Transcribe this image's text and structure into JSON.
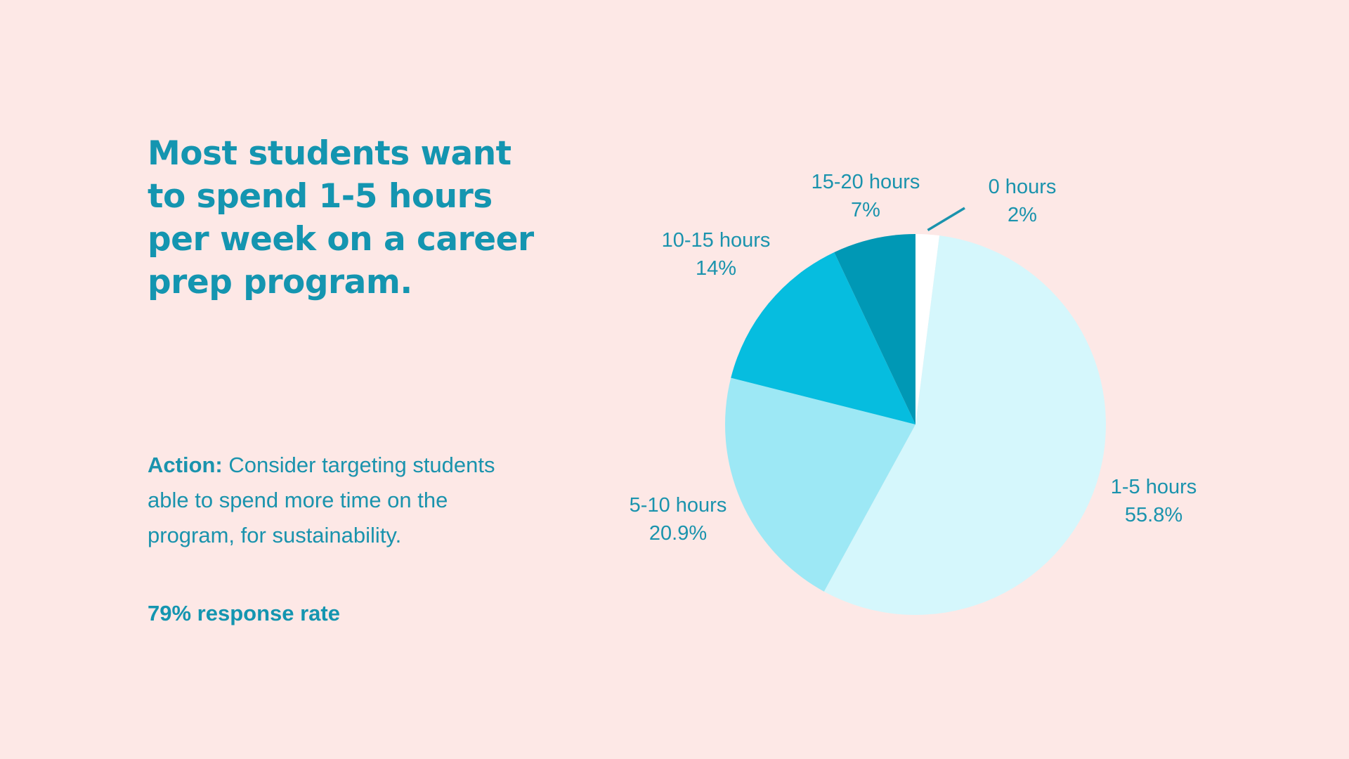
{
  "headline": "Most students want to spend 1-5 hours per week on a career prep program.",
  "action": {
    "lead": "Action:",
    "text": "Consider targeting students able to spend more time on the program, for sustainability."
  },
  "response_rate": "79% response rate",
  "chart_data": {
    "type": "pie",
    "title": "",
    "categories": [
      "0 hours",
      "1-5 hours",
      "5-10 hours",
      "10-15 hours",
      "15-20 hours"
    ],
    "values": [
      2,
      55.8,
      20.9,
      14,
      7
    ],
    "value_labels": [
      "2%",
      "55.8%",
      "20.9%",
      "14%",
      "7%"
    ],
    "start_angle": "12 o'clock",
    "direction": "clockwise",
    "colors": [
      "#ffffff",
      "#d5f7fc",
      "#9de8f5",
      "#06bddf",
      "#0098b5"
    ],
    "label_color": "#1a93ad",
    "leader_line_on": "0 hours"
  }
}
